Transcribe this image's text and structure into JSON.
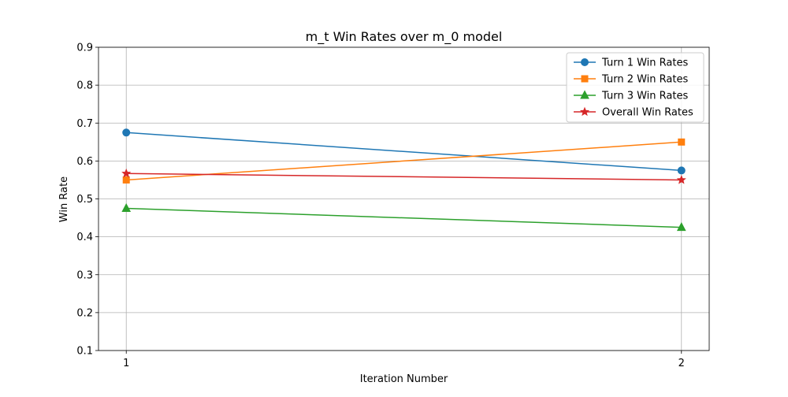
{
  "chart_data": {
    "type": "line",
    "title": "m_t Win Rates over m_0 model",
    "xlabel": "Iteration Number",
    "ylabel": "Win Rate",
    "x": [
      1,
      2
    ],
    "x_ticks": [
      "1",
      "2"
    ],
    "xlim": [
      0.95,
      2.05
    ],
    "ylim": [
      0.1,
      0.9
    ],
    "y_ticks": [
      "0.1",
      "0.2",
      "0.3",
      "0.4",
      "0.5",
      "0.6",
      "0.7",
      "0.8",
      "0.9"
    ],
    "grid": true,
    "legend_position": "top-right",
    "series": [
      {
        "name": "Turn 1 Win Rates",
        "values": [
          0.675,
          0.575
        ],
        "color": "#1f77b4",
        "marker": "circle"
      },
      {
        "name": "Turn 2 Win Rates",
        "values": [
          0.55,
          0.65
        ],
        "color": "#ff7f0e",
        "marker": "square"
      },
      {
        "name": "Turn 3 Win Rates",
        "values": [
          0.475,
          0.425
        ],
        "color": "#2ca02c",
        "marker": "triangle"
      },
      {
        "name": "Overall Win Rates",
        "values": [
          0.567,
          0.55
        ],
        "color": "#d62728",
        "marker": "star"
      }
    ]
  }
}
